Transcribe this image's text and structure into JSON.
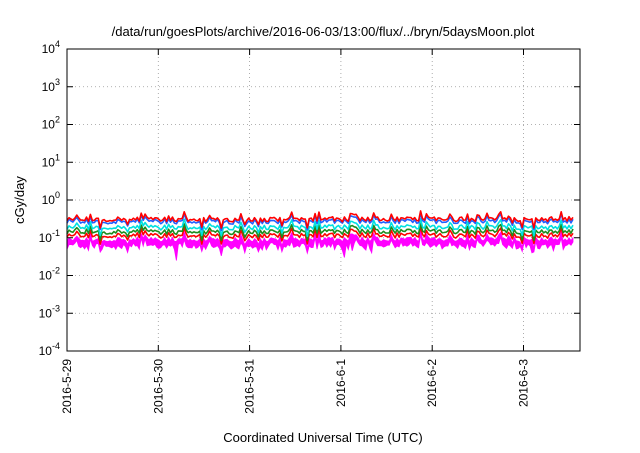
{
  "chart_data": {
    "type": "line",
    "title": "/data/run/goesPlots/archive/2016-06-03/13:00/flux/../bryn/5daysMoon.plot",
    "xlabel": "Coordinated Universal Time (UTC)",
    "ylabel": "cGy/day",
    "scale_y": "log",
    "ylim": [
      0.0001,
      10000
    ],
    "xlim": [
      "2016-05-29 00:00",
      "2016-06-03 13:00"
    ],
    "grid": true,
    "legend": "none",
    "x_ticks": [
      "2016-5-29",
      "2016-5-30",
      "2016-5-31",
      "2016-6-1",
      "2016-6-2",
      "2016-6-3"
    ],
    "y_ticks": [
      {
        "base": "10",
        "exp": "-4",
        "value": 0.0001
      },
      {
        "base": "10",
        "exp": "-3",
        "value": 0.001
      },
      {
        "base": "10",
        "exp": "-2",
        "value": 0.01
      },
      {
        "base": "10",
        "exp": "-1",
        "value": 0.1
      },
      {
        "base": "10",
        "exp": "0",
        "value": 1
      },
      {
        "base": "10",
        "exp": "1",
        "value": 10
      },
      {
        "base": "10",
        "exp": "2",
        "value": 100
      },
      {
        "base": "10",
        "exp": "3",
        "value": 1000
      },
      {
        "base": "10",
        "exp": "4",
        "value": 10000
      }
    ],
    "series": [
      {
        "color": "#ff00ff",
        "level": 0.09,
        "min_level": 0.025,
        "style": "filled-dips",
        "dips": [
          [
            "2016-05-30 05:00",
            0.025
          ],
          [
            "2016-06-01 01:00",
            0.03
          ],
          [
            "2016-06-01 03:00",
            0.045
          ],
          [
            "2016-06-01 08:00",
            0.04
          ],
          [
            "2016-06-03 02:00",
            0.04
          ],
          [
            "2016-06-03 08:00",
            0.045
          ],
          [
            "2016-05-29 04:00",
            0.06
          ]
        ]
      },
      {
        "color": "#ff0000",
        "level": 0.115
      },
      {
        "color": "#1e8c1e",
        "level": 0.145
      },
      {
        "color": "#00e0e0",
        "level": 0.19
      },
      {
        "color": "#2060ff",
        "level": 0.27
      },
      {
        "color": "#ff0000",
        "level": 0.31
      }
    ]
  }
}
